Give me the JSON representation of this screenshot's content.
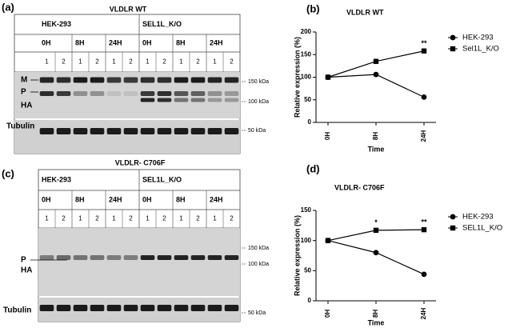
{
  "figure": {
    "blots": [
      {
        "panel": "(a)",
        "title": "VLDLR WT",
        "groups": [
          "HEK-293",
          "SEL1L_K/O"
        ],
        "times": [
          "0H",
          "8H",
          "24H"
        ],
        "lanes": [
          "1",
          "2"
        ],
        "band_labels": [
          "M",
          "P",
          "HA"
        ],
        "markers": [
          "150 kDa",
          "100 kDa",
          "50 kDa"
        ],
        "loading_control": "Tubulin"
      },
      {
        "panel": "(c)",
        "title": "VLDLR- C706F",
        "groups": [
          "HEK-293",
          "SEL1L_K/O"
        ],
        "times": [
          "0H",
          "8H",
          "24H"
        ],
        "lanes": [
          "1",
          "2"
        ],
        "band_labels": [
          "P",
          "HA"
        ],
        "markers": [
          "150 kDa",
          "100 kDa",
          "50 kDa"
        ],
        "loading_control": "Tubulin"
      }
    ]
  },
  "chart_data": [
    {
      "type": "line",
      "panel": "(b)",
      "title": "VLDLR WT",
      "x_label": "Time",
      "y_label": "Relative expression (%)",
      "categories": [
        "0H",
        "8H",
        "24H"
      ],
      "series": [
        {
          "name": "HEK-293",
          "color": "#000000",
          "marker": "circle",
          "values": [
            100,
            106,
            56
          ]
        },
        {
          "name": "Sel1L_K/O",
          "color": "#000000",
          "marker": "square",
          "values": [
            100,
            135,
            158
          ]
        }
      ],
      "ylim": [
        0,
        200
      ],
      "yticks": [
        0,
        50,
        100,
        150,
        200
      ],
      "annotations": [
        {
          "text": "**",
          "x": "24H"
        }
      ]
    },
    {
      "type": "line",
      "panel": "(d)",
      "title": "VLDLR- C706F",
      "x_label": "Time",
      "y_label": "Relative expression (%)",
      "categories": [
        "0H",
        "8H",
        "24H"
      ],
      "series": [
        {
          "name": "HEK-293",
          "color": "#000000",
          "marker": "circle",
          "values": [
            100,
            80,
            44
          ]
        },
        {
          "name": "SEL1L_K/O",
          "color": "#000000",
          "marker": "square",
          "values": [
            100,
            117,
            118
          ]
        }
      ],
      "ylim": [
        0,
        150
      ],
      "yticks": [
        0,
        50,
        100,
        150
      ],
      "annotations": [
        {
          "text": "*",
          "x": "8H"
        },
        {
          "text": "**",
          "x": "24H"
        }
      ]
    }
  ]
}
